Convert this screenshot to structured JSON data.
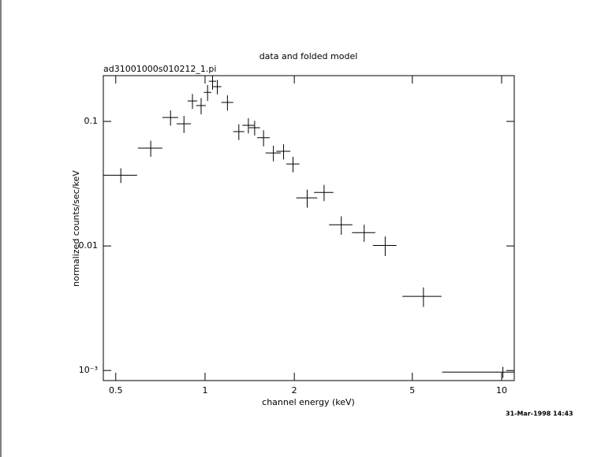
{
  "chart_data": {
    "type": "scatter",
    "title": "data and folded model",
    "subtitle": "ad31001000s010212_1.pi",
    "xlabel": "channel energy (keV)",
    "ylabel": "normalized counts/sec/keV",
    "annotation": "31-Mar-1998 14:43",
    "x": [
      0.52,
      0.656,
      0.765,
      0.849,
      0.907,
      0.97,
      1.02,
      1.06,
      1.1,
      1.19,
      1.3,
      1.4,
      1.47,
      1.575,
      1.7,
      1.84,
      1.98,
      2.21,
      2.52,
      2.88,
      3.44,
      4.05,
      5.45,
      10.1
    ],
    "xerr": [
      0.07,
      0.062,
      0.047,
      0.047,
      0.034,
      0.036,
      0.03,
      0.03,
      0.035,
      0.055,
      0.056,
      0.064,
      0.063,
      0.077,
      0.1,
      0.1,
      0.1,
      0.18,
      0.19,
      0.26,
      0.31,
      0.37,
      0.82,
      3.8
    ],
    "values": [
      0.037,
      0.061,
      0.1075,
      0.0957,
      0.146,
      0.134,
      0.171,
      0.21,
      0.19,
      0.142,
      0.0828,
      0.093,
      0.089,
      0.074,
      0.0558,
      0.0575,
      0.0455,
      0.0243,
      0.0269,
      0.0148,
      0.0128,
      0.0101,
      0.00394,
      0.00097
    ],
    "yerr": [
      0.005,
      0.009,
      0.015,
      0.015,
      0.02,
      0.02,
      0.025,
      0.03,
      0.025,
      0.02,
      0.012,
      0.013,
      0.012,
      0.011,
      0.008,
      0.008,
      0.0065,
      0.004,
      0.004,
      0.0025,
      0.002,
      0.0018,
      0.0007,
      0.0001
    ],
    "color": "#000000",
    "xscale": "log",
    "yscale": "log",
    "xlim": [
      0.454,
      11.03
    ],
    "ylim": [
      0.00083,
      0.233
    ],
    "xticks": [
      0.5,
      1,
      2,
      5,
      10
    ],
    "yticks": [
      0.1,
      0.01,
      {
        "value": 0.001,
        "label": "10⁻³"
      }
    ]
  }
}
